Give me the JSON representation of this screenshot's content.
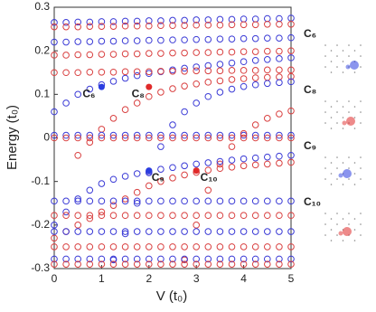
{
  "chart_data": {
    "type": "scatter",
    "y_label": "Energy (t₀)",
    "x_label": "V (t₀)",
    "xlim": [
      0,
      5
    ],
    "ylim": [
      -0.3,
      0.3
    ],
    "xticks": [
      0,
      1,
      2,
      3,
      4,
      5
    ],
    "yticks": [
      0.3,
      0.2,
      0.1,
      0,
      -0.1,
      -0.2,
      -0.3
    ],
    "x": [
      0,
      0.25,
      0.5,
      0.75,
      1,
      1.25,
      1.5,
      1.75,
      2,
      2.25,
      2.5,
      2.75,
      3,
      3.25,
      3.5,
      3.75,
      4,
      4.25,
      4.5,
      4.75,
      5
    ],
    "series": [
      {
        "color": "#3b3bd6",
        "values": [
          0.265,
          0.265,
          0.266,
          0.266,
          0.267,
          0.267,
          0.268,
          0.268,
          0.269,
          0.269,
          0.27,
          0.27,
          0.271,
          0.271,
          0.272,
          0.272,
          0.273,
          0.273,
          0.274,
          0.274,
          0.275
        ]
      },
      {
        "color": "#d94040",
        "values": [
          0.255,
          0.255,
          0.255,
          0.256,
          0.256,
          0.256,
          0.257,
          0.257,
          0.257,
          0.258,
          0.258,
          0.258,
          0.259,
          0.259,
          0.259,
          0.26,
          0.26,
          0.26,
          0.261,
          0.261,
          0.261
        ]
      },
      {
        "color": "#3b3bd6",
        "values": [
          0.22,
          0.22,
          0.221,
          0.221,
          0.222,
          0.222,
          0.223,
          0.223,
          0.224,
          0.224,
          0.225,
          0.225,
          0.226,
          0.226,
          0.227,
          0.227,
          0.228,
          0.228,
          0.229,
          0.229,
          0.23
        ]
      },
      {
        "color": "#d94040",
        "values": [
          0.19,
          0.19,
          0.191,
          0.191,
          0.192,
          0.192,
          0.193,
          0.193,
          0.194,
          0.194,
          0.195,
          0.195,
          0.196,
          0.196,
          0.197,
          0.197,
          0.198,
          0.198,
          0.199,
          0.199,
          0.2
        ]
      },
      {
        "color": "#3b3bd6",
        "values": [
          0.06,
          0.08,
          0.1,
          0.112,
          0.122,
          0.13,
          0.137,
          0.143,
          0.148,
          0.152,
          0.156,
          0.16,
          0.163,
          0.166,
          0.169,
          0.172,
          0.175,
          0.178,
          0.18,
          0.182,
          0.184
        ]
      },
      {
        "color": "#d94040",
        "values": [
          0.15,
          0.15,
          0.15,
          0.151,
          0.151,
          0.151,
          0.152,
          0.152,
          0.152,
          0.153,
          0.153,
          0.153,
          0.154,
          0.154,
          0.154,
          0.155,
          0.155,
          0.155,
          0.156,
          0.156,
          0.156
        ]
      },
      {
        "color": "#d94040",
        "values": [
          null,
          null,
          -0.04,
          -0.01,
          0.02,
          0.045,
          0.065,
          0.08,
          0.095,
          0.105,
          0.113,
          0.119,
          0.124,
          0.128,
          0.131,
          0.134,
          0.136,
          0.138,
          0.139,
          0.14,
          0.141
        ]
      },
      {
        "color": "#3b3bd6",
        "values": [
          0.006,
          0.006,
          0.006,
          0.006,
          0.006,
          0.006,
          0.006,
          0.006,
          0.006,
          0.006,
          0.006,
          0.006,
          0.006,
          0.006,
          0.006,
          0.006,
          0.006,
          0.006,
          0.006,
          0.006,
          0.006
        ]
      },
      {
        "color": "#d94040",
        "values": [
          0,
          0,
          0,
          0,
          0,
          0,
          0,
          0,
          0,
          0,
          0,
          0,
          0,
          0,
          0,
          0,
          0,
          0,
          0,
          0,
          0
        ]
      },
      {
        "color": "#3b3bd6",
        "values": [
          null,
          null,
          null,
          null,
          null,
          -0.28,
          -0.22,
          -0.15,
          -0.08,
          -0.02,
          0.03,
          0.06,
          0.08,
          0.095,
          0.105,
          0.112,
          0.118,
          0.122,
          0.125,
          0.127,
          0.129
        ]
      },
      {
        "color": "#d94040",
        "values": [
          null,
          null,
          null,
          null,
          null,
          null,
          null,
          null,
          null,
          null,
          null,
          -0.28,
          -0.2,
          -0.12,
          -0.06,
          -0.02,
          0.01,
          0.03,
          0.045,
          0.055,
          0.062
        ]
      },
      {
        "color": "#3b3bd6",
        "values": [
          -0.2,
          -0.17,
          -0.14,
          -0.12,
          -0.105,
          -0.095,
          -0.088,
          -0.082,
          -0.077,
          -0.072,
          -0.068,
          -0.064,
          -0.06,
          -0.057,
          -0.054,
          -0.051,
          -0.048,
          -0.046,
          -0.044,
          -0.042,
          -0.04
        ]
      },
      {
        "color": "#d94040",
        "values": [
          -0.23,
          -0.215,
          -0.2,
          -0.185,
          -0.17,
          -0.155,
          -0.14,
          -0.125,
          -0.11,
          -0.1,
          -0.092,
          -0.085,
          -0.079,
          -0.074,
          -0.07,
          -0.067,
          -0.064,
          -0.062,
          -0.06,
          -0.058,
          -0.056
        ]
      },
      {
        "color": "#3b3bd6",
        "values": [
          -0.145,
          -0.145,
          -0.145,
          -0.145,
          -0.145,
          -0.145,
          -0.145,
          -0.145,
          -0.145,
          -0.145,
          -0.145,
          -0.145,
          -0.145,
          -0.145,
          -0.145,
          -0.145,
          -0.145,
          -0.145,
          -0.145,
          -0.145,
          -0.145
        ]
      },
      {
        "color": "#d94040",
        "values": [
          -0.178,
          -0.178,
          -0.178,
          -0.178,
          -0.178,
          -0.178,
          -0.178,
          -0.178,
          -0.178,
          -0.178,
          -0.178,
          -0.178,
          -0.178,
          -0.178,
          -0.178,
          -0.178,
          -0.178,
          -0.178,
          -0.178,
          -0.178,
          -0.178
        ]
      },
      {
        "color": "#3b3bd6",
        "values": [
          -0.215,
          -0.215,
          -0.215,
          -0.215,
          -0.215,
          -0.215,
          -0.215,
          -0.215,
          -0.215,
          -0.215,
          -0.215,
          -0.215,
          -0.215,
          -0.215,
          -0.215,
          -0.215,
          -0.215,
          -0.215,
          -0.215,
          -0.215,
          -0.215
        ]
      },
      {
        "color": "#d94040",
        "values": [
          -0.25,
          -0.25,
          -0.25,
          -0.25,
          -0.25,
          -0.25,
          -0.25,
          -0.25,
          -0.25,
          -0.25,
          -0.25,
          -0.25,
          -0.25,
          -0.25,
          -0.25,
          -0.25,
          -0.25,
          -0.25,
          -0.25,
          -0.25,
          -0.25
        ]
      },
      {
        "color": "#3b3bd6",
        "values": [
          -0.278,
          -0.278,
          -0.278,
          -0.278,
          -0.278,
          -0.278,
          -0.278,
          -0.278,
          -0.278,
          -0.278,
          -0.278,
          -0.278,
          -0.278,
          -0.278,
          -0.278,
          -0.278,
          -0.278,
          -0.278,
          -0.278,
          -0.278,
          -0.278
        ]
      },
      {
        "color": "#d94040",
        "values": [
          -0.29,
          -0.29,
          -0.29,
          -0.29,
          -0.29,
          -0.29,
          -0.29,
          -0.29,
          -0.29,
          -0.29,
          -0.29,
          -0.29,
          -0.29,
          -0.29,
          -0.29,
          -0.29,
          -0.29,
          -0.29,
          -0.29,
          -0.29,
          -0.29
        ]
      }
    ],
    "highlights": [
      {
        "label": "C₆",
        "x": 1,
        "y": 0.117,
        "color": "#2a3de0"
      },
      {
        "label": "C₈",
        "x": 2,
        "y": 0.117,
        "color": "#e02a2a"
      },
      {
        "label": "C₉",
        "x": 2,
        "y": -0.075,
        "color": "#2a3de0"
      },
      {
        "label": "C₁₀",
        "x": 3,
        "y": -0.075,
        "color": "#e02a2a"
      }
    ],
    "insets": [
      {
        "label": "C₆",
        "color": "#2a3de0"
      },
      {
        "label": "C₈",
        "color": "#e02a2a"
      },
      {
        "label": "C₉",
        "color": "#2a3de0"
      },
      {
        "label": "C₁₀",
        "color": "#e02a2a"
      }
    ]
  }
}
